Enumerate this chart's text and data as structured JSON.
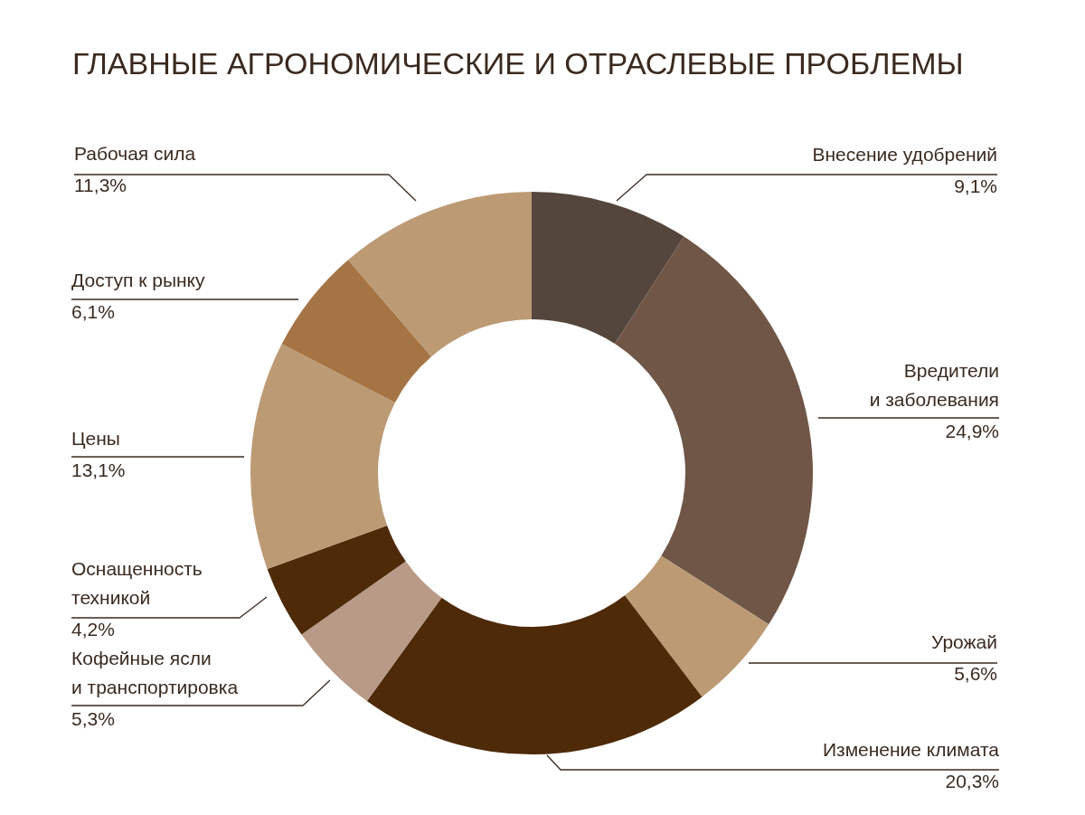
{
  "chart_data": {
    "type": "donut",
    "title": "ГЛАВНЫЕ АГРОНОМИЧЕСКИЕ И ОТРАСЛЕВЫЕ ПРОБЛЕМЫ",
    "categories": [
      "Внесение удобрений",
      "Вредители и заболевания",
      "Урожай",
      "Изменение климата",
      "Кофейные ясли и транспортировка",
      "Оснащенность техникой",
      "Цены",
      "Доступ к рынку",
      "Рабочая сила"
    ],
    "values": [
      9.1,
      24.9,
      5.6,
      20.3,
      5.3,
      4.2,
      13.1,
      6.1,
      11.3
    ],
    "value_labels": [
      "9,1%",
      "24,9%",
      "5,6%",
      "20,3%",
      "5,3%",
      "4,2%",
      "13,1%",
      "6,1%",
      "11,3%"
    ],
    "colors": [
      "#54463d",
      "#6f5646",
      "#bc9a74",
      "#4e2a08",
      "#b89a86",
      "#4e2a08",
      "#bc9a74",
      "#a57444",
      "#bc9a74"
    ]
  }
}
